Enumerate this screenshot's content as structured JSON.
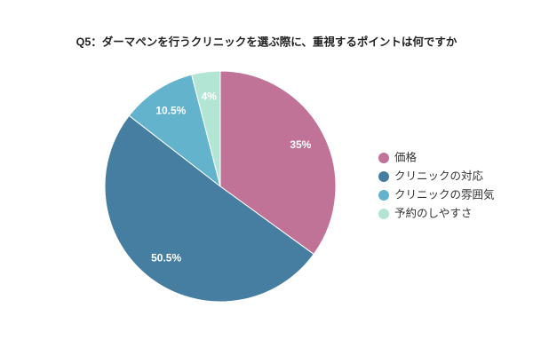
{
  "chart_data": {
    "type": "pie",
    "title": "Q5：ダーマペンを行うクリニックを選ぶ際に、重視するポイントは何ですか",
    "categories": [
      "価格",
      "クリニックの対応",
      "クリニックの雰囲気",
      "予約のしやすさ"
    ],
    "values": [
      35,
      50.5,
      10.5,
      4
    ],
    "value_labels": [
      "35%",
      "50.5%",
      "10.5%",
      "4%"
    ],
    "colors": [
      "#c07396",
      "#457ea0",
      "#63b3cc",
      "#b3e5d5"
    ],
    "legend": "right"
  }
}
